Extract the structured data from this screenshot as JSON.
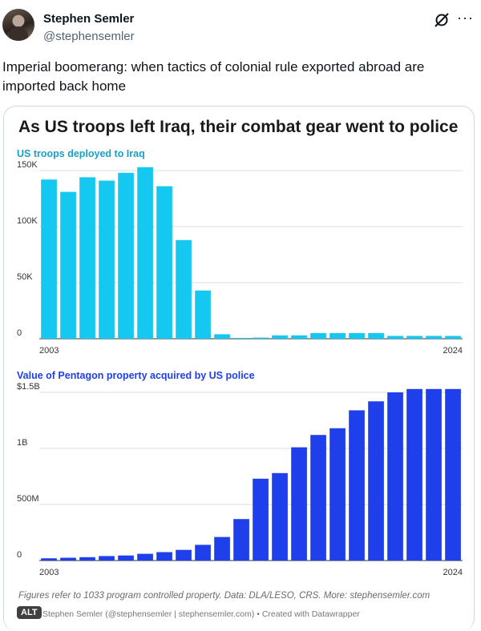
{
  "tweet": {
    "author_name": "Stephen Semler",
    "author_handle": "@stephensemler",
    "text": "Imperial boomerang: when tactics of colonial rule exported abroad are imported back home",
    "more_label": "···"
  },
  "card": {
    "title": "As US troops left Iraq, their combat gear went to police",
    "footnote": "Figures refer to 1033 program controlled property. Data: DLA/LESO, CRS. More: stephensemler.com",
    "credit": "Stephen Semler (@stephensemler | stephensemler.com) • Created with Datawrapper",
    "alt_label": "ALT"
  },
  "colors": {
    "troops": "#14c8f0",
    "property": "#1f3fea",
    "troops_title": "#1aa0c8",
    "property_title": "#1f3fea"
  },
  "chart_data": [
    {
      "type": "bar",
      "title": "US troops deployed to Iraq",
      "categories": [
        "2003",
        "2004",
        "2005",
        "2006",
        "2007",
        "2008",
        "2009",
        "2010",
        "2011",
        "2012",
        "2013",
        "2014",
        "2015",
        "2016",
        "2017",
        "2018",
        "2019",
        "2020",
        "2021",
        "2022",
        "2023",
        "2024"
      ],
      "values": [
        142000,
        131000,
        144000,
        141000,
        148000,
        158000,
        136000,
        88000,
        43000,
        4000,
        500,
        1000,
        3000,
        3000,
        5000,
        5000,
        5000,
        5000,
        2500,
        2500,
        2500,
        2500
      ],
      "ylim": [
        0,
        150000
      ],
      "yticks": [
        "0",
        "50K",
        "100K",
        "150K"
      ],
      "ytick_values": [
        0,
        50000,
        100000,
        150000
      ],
      "xtick_labels": [
        "2003",
        "2024"
      ],
      "grid": true
    },
    {
      "type": "bar",
      "title": "Value of Pentagon property acquired by US police",
      "categories": [
        "2003",
        "2004",
        "2005",
        "2006",
        "2007",
        "2008",
        "2009",
        "2010",
        "2011",
        "2012",
        "2013",
        "2014",
        "2015",
        "2016",
        "2017",
        "2018",
        "2019",
        "2020",
        "2021",
        "2022",
        "2023",
        "2024"
      ],
      "values": [
        20000000,
        25000000,
        30000000,
        40000000,
        45000000,
        60000000,
        75000000,
        95000000,
        140000000,
        210000000,
        370000000,
        730000000,
        780000000,
        1010000000,
        1120000000,
        1180000000,
        1340000000,
        1420000000,
        1500000000,
        1540000000,
        1560000000,
        1570000000
      ],
      "ylim": [
        0,
        1500000000
      ],
      "yticks": [
        "0",
        "500M",
        "1B",
        "$1.5B"
      ],
      "ytick_values": [
        0,
        500000000,
        1000000000,
        1500000000
      ],
      "xtick_labels": [
        "2003",
        "2024"
      ],
      "grid": true
    }
  ]
}
